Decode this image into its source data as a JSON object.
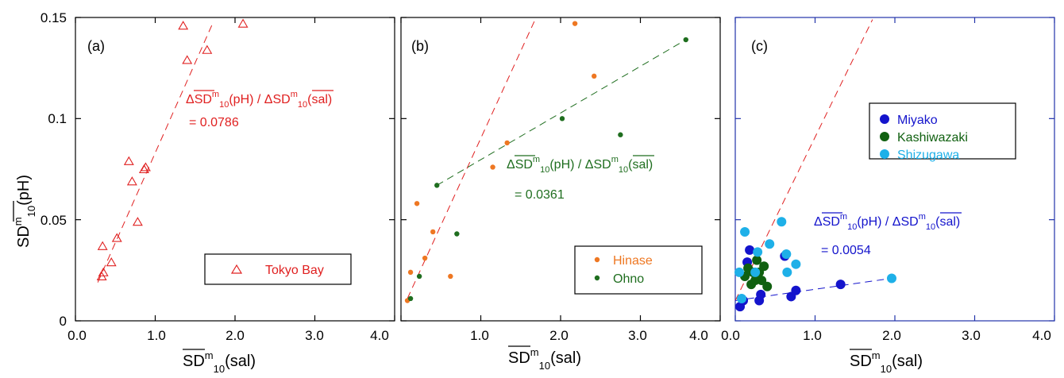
{
  "colors": {
    "tokyo": "#e02020",
    "hinase": "#ee7722",
    "ohno": "#1f6e1f",
    "miyako": "#1414cc",
    "kashiwazaki": "#106010",
    "shizugawa": "#1eb0e8",
    "frame_blue": "#2233aa"
  },
  "ylabel": {
    "main": "SD",
    "sup": "m",
    "sub": "10",
    "tail": "(pH)"
  },
  "xlabel": {
    "main": "SD",
    "sup": "m",
    "sub": "10",
    "tail": "(sal)"
  },
  "chart_data": [
    {
      "type": "scatter",
      "panel_label": "(a)",
      "xlim": [
        0,
        4.0
      ],
      "ylim": [
        0,
        0.15
      ],
      "x_ticks": [
        "0.0",
        "1.0",
        "2.0",
        "3.0",
        "4.0"
      ],
      "y_ticks": [
        "0",
        "0.05",
        "0.1",
        "0.15"
      ],
      "series": [
        {
          "name": "Tokyo Bay",
          "marker": "triangle",
          "color": "#e02020",
          "x": [
            0.33,
            0.35,
            0.34,
            0.45,
            0.52,
            0.67,
            0.71,
            0.78,
            0.86,
            0.88,
            1.35,
            1.4,
            1.65,
            2.1
          ],
          "y": [
            0.022,
            0.024,
            0.037,
            0.029,
            0.041,
            0.079,
            0.069,
            0.049,
            0.075,
            0.076,
            0.146,
            0.129,
            0.134,
            0.147
          ]
        }
      ],
      "fit_lines": [
        {
          "color": "#e02020",
          "x": [
            0.28,
            1.73
          ],
          "y": [
            0.019,
            0.148
          ]
        }
      ],
      "annotation": {
        "line1_a": "Δ",
        "line1_b": "SD",
        "line1_c": "m",
        "line1_d": "10",
        "line1_e": "(pH) / Δ",
        "line1_f": "SD",
        "line1_g": "m",
        "line1_h": "10",
        "line1_i": "(sal)",
        "line2": "= 0.0786"
      }
    },
    {
      "type": "scatter",
      "panel_label": "(b)",
      "xlim": [
        0,
        4.0
      ],
      "ylim": [
        0,
        0.15
      ],
      "x_ticks": [
        "0.0",
        "1.0",
        "2.0",
        "3.0",
        "4.0"
      ],
      "y_ticks": [
        "0",
        "0.05",
        "0.1",
        "0.15"
      ],
      "series": [
        {
          "name": "Hinase",
          "marker": "dot",
          "color": "#ee7722",
          "x": [
            0.08,
            0.12,
            0.2,
            0.3,
            0.4,
            0.62,
            1.15,
            1.33,
            2.18,
            2.42
          ],
          "y": [
            0.01,
            0.024,
            0.058,
            0.031,
            0.044,
            0.022,
            0.076,
            0.088,
            0.147,
            0.121
          ]
        },
        {
          "name": "Ohno",
          "marker": "dot",
          "color": "#1f6e1f",
          "x": [
            0.12,
            0.23,
            0.45,
            0.7,
            2.02,
            2.75,
            3.57
          ],
          "y": [
            0.011,
            0.022,
            0.067,
            0.043,
            0.1,
            0.092,
            0.139
          ]
        }
      ],
      "fit_lines": [
        {
          "color": "#e02020",
          "x": [
            0.08,
            1.67
          ],
          "y": [
            0.011,
            0.148
          ]
        },
        {
          "color": "#1f6e1f",
          "x": [
            0.45,
            3.57
          ],
          "y": [
            0.067,
            0.139
          ]
        }
      ],
      "annotation": {
        "line1_a": "Δ",
        "line1_b": "SD",
        "line1_c": "m",
        "line1_d": "10",
        "line1_e": "(pH) / Δ",
        "line1_f": "SD",
        "line1_g": "m",
        "line1_h": "10",
        "line1_i": "(sal)",
        "line2": "= 0.0361"
      }
    },
    {
      "type": "scatter",
      "panel_label": "(c)",
      "xlim": [
        0,
        4.0
      ],
      "ylim": [
        0,
        0.15
      ],
      "x_ticks": [
        "0.0",
        "1.0",
        "2.0",
        "3.0",
        "4.0"
      ],
      "y_ticks": [
        "0",
        "0.05",
        "0.1",
        "0.15"
      ],
      "series": [
        {
          "name": "Miyako",
          "marker": "dot",
          "color": "#1414cc",
          "x": [
            0.06,
            0.1,
            0.15,
            0.18,
            0.3,
            0.32,
            0.62,
            0.7,
            0.76,
            1.32
          ],
          "y": [
            0.007,
            0.01,
            0.029,
            0.035,
            0.01,
            0.013,
            0.032,
            0.012,
            0.015,
            0.018
          ]
        },
        {
          "name": "Kashiwazaki",
          "marker": "dot",
          "color": "#106010",
          "x": [
            0.12,
            0.16,
            0.2,
            0.22,
            0.25,
            0.27,
            0.3,
            0.33,
            0.36,
            0.4
          ],
          "y": [
            0.022,
            0.026,
            0.018,
            0.024,
            0.02,
            0.03,
            0.024,
            0.02,
            0.027,
            0.017
          ]
        },
        {
          "name": "Shizugawa",
          "marker": "dot",
          "color": "#1eb0e8",
          "x": [
            0.05,
            0.08,
            0.12,
            0.25,
            0.28,
            0.43,
            0.58,
            0.64,
            0.65,
            0.76,
            1.96
          ],
          "y": [
            0.024,
            0.011,
            0.044,
            0.024,
            0.034,
            0.038,
            0.049,
            0.033,
            0.024,
            0.028,
            0.021
          ]
        }
      ],
      "fit_lines": [
        {
          "color": "#e02020",
          "x": [
            0.0,
            1.72
          ],
          "y": [
            0.01,
            0.149
          ]
        },
        {
          "color": "#1414cc",
          "x": [
            0.0,
            1.96
          ],
          "y": [
            0.01,
            0.021
          ]
        }
      ],
      "annotation": {
        "line1_a": "Δ",
        "line1_b": "SD",
        "line1_c": "m",
        "line1_d": "10",
        "line1_e": "(pH) / Δ",
        "line1_f": "SD",
        "line1_g": "m",
        "line1_h": "10",
        "line1_i": "(sal)",
        "line2": "= 0.0054"
      }
    }
  ]
}
